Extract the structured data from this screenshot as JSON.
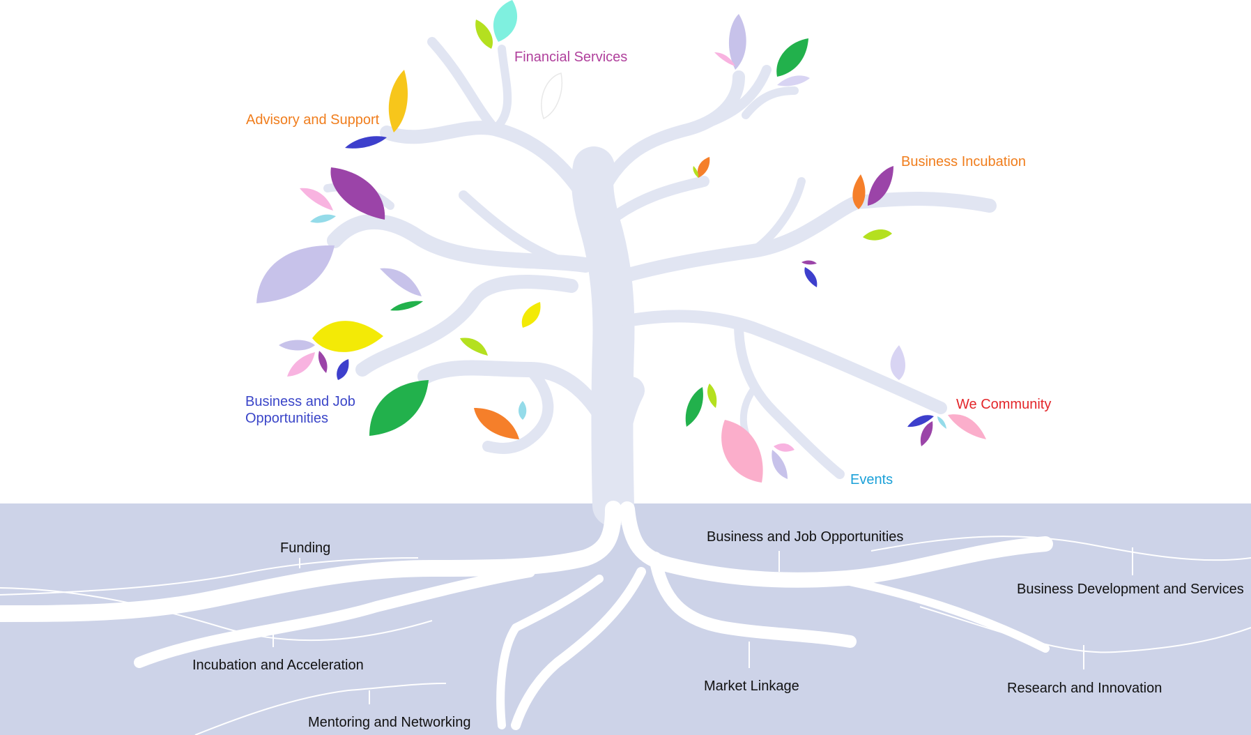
{
  "branch_labels": {
    "financial_services": "Financial Services",
    "advisory_and_support": "Advisory and Support",
    "business_incubation": "Business Incubation",
    "business_and_job_opportunities_line1": "Business and Job",
    "business_and_job_opportunities_line2": "Opportunities",
    "we_community": "We Community",
    "events": "Events"
  },
  "root_labels": {
    "funding": "Funding",
    "incubation_and_acceleration": "Incubation and Acceleration",
    "mentoring_and_networking": "Mentoring and Networking",
    "business_and_job_opportunities": "Business and Job Opportunities",
    "business_development_and_services": "Business Development and Services",
    "market_linkage": "Market Linkage",
    "research_and_innovation": "Research and Innovation"
  },
  "colors": {
    "tree": "#e1e5f2",
    "ground": "#cdd3e8",
    "roots": "#ffffff",
    "financial_services": "#b0409c",
    "advisory_and_support": "#f07d1c",
    "business_incubation": "#f07d1c",
    "business_and_job_opportunities": "#3a45c8",
    "we_community": "#e3262a",
    "events": "#1aa0d8"
  }
}
